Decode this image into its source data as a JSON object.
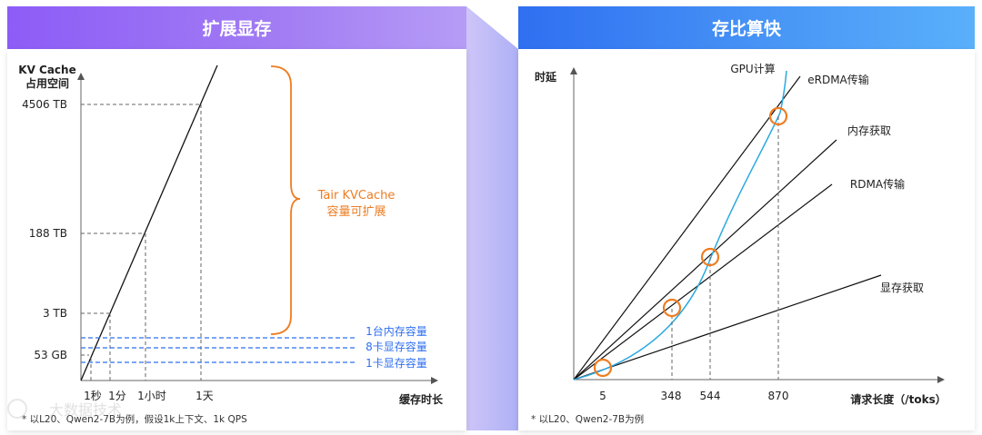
{
  "left": {
    "title": "扩展显存",
    "y_axis_title_line1": "KV Cache",
    "y_axis_title_line2": "占用空间",
    "x_axis_title": "缓存时长",
    "y_ticks": [
      "4506 TB",
      "188 TB",
      "3 TB",
      "53 GB"
    ],
    "x_ticks": [
      "1秒",
      "1分",
      "1小时",
      "1天"
    ],
    "brace_label_line1": "Tair KVCache",
    "brace_label_line2": "容量可扩展",
    "capacity_lines": [
      "1台内存容量",
      "8卡显存容量",
      "1卡显存容量"
    ],
    "footnote": "* 以L20、Qwen2-7B为例，假设1k上下文、1k QPS",
    "watermark": "大数据技术"
  },
  "right": {
    "title": "存比算快",
    "y_axis_title": "时延",
    "x_axis_title": "请求长度（/toks）",
    "x_ticks": [
      "5",
      "348",
      "544",
      "870"
    ],
    "line_labels": [
      "GPU计算",
      "eRDMA传输",
      "内存获取",
      "RDMA传输",
      "显存获取"
    ],
    "footnote": "* 以L20、Qwen2-7B为例"
  },
  "colors": {
    "purple": "#8d5cf7",
    "blue": "#2f6ff1",
    "orange": "#ee7d22",
    "cap_blue": "#2f6ff1",
    "gpu_curve": "#2aa9e0"
  }
}
